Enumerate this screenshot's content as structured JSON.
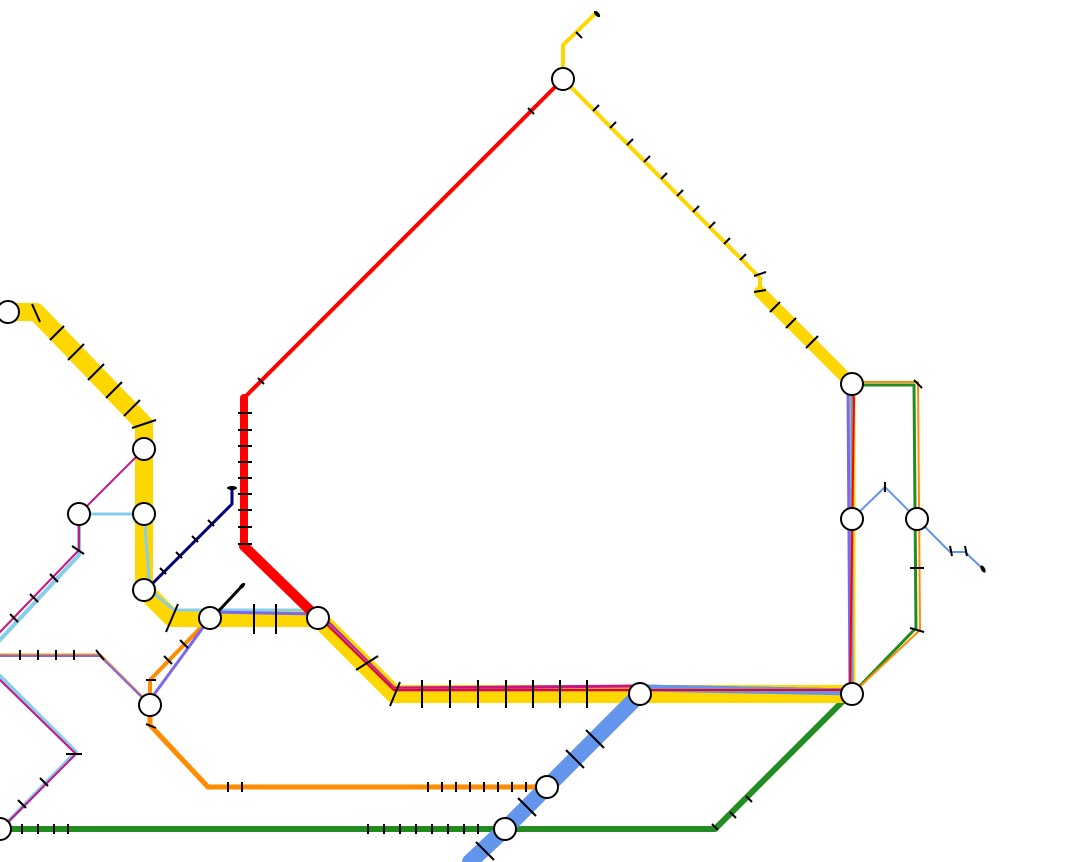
{
  "map": {
    "kind": "transit-route-map",
    "labels": []
  },
  "lines": [
    {
      "id": "yellow",
      "color": "#FFD700"
    },
    {
      "id": "red",
      "color": "#FF0000"
    },
    {
      "id": "blue",
      "color": "#6495ED"
    },
    {
      "id": "green",
      "color": "#228B22"
    },
    {
      "id": "orange",
      "color": "#FF8C00"
    },
    {
      "id": "magenta",
      "color": "#C71585"
    },
    {
      "id": "light-blue",
      "color": "#87CEEB"
    },
    {
      "id": "purple",
      "color": "#7B68EE"
    },
    {
      "id": "navy",
      "color": "#000080"
    }
  ]
}
